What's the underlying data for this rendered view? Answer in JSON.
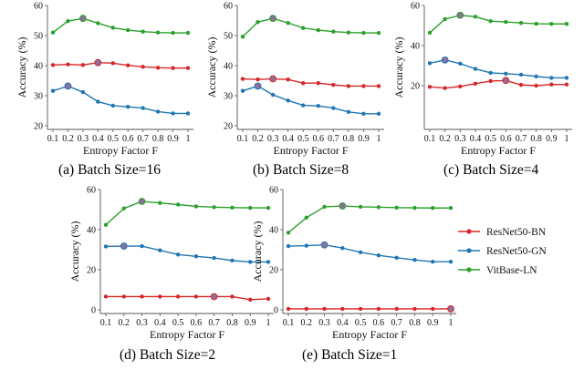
{
  "legend": {
    "position": "right",
    "entries": [
      {
        "name": "ResNet50-BN",
        "color": "#d62728"
      },
      {
        "name": "ResNet50-GN",
        "color": "#1f77b4"
      },
      {
        "name": "VitBase-LN",
        "color": "#2ca02c"
      }
    ]
  },
  "captions": [
    "(a) Batch Size=16",
    "(b) Batch Size=8",
    "(c) Batch Size=4",
    "(d) Batch Size=2",
    "(e) Batch Size=1"
  ],
  "chart_data": [
    {
      "type": "line",
      "caption": "(a) Batch Size=16",
      "xlabel": "Entropy Factor F",
      "ylabel": "Accuracy (%)",
      "x": [
        0.1,
        0.2,
        0.3,
        0.4,
        0.5,
        0.6,
        0.7,
        0.8,
        0.9,
        1
      ],
      "xtick_labels": [
        "0.1",
        "0.2",
        "0.3",
        "0.4",
        "0.5",
        "0.6",
        "0.7",
        "0.8",
        "0.9",
        "1"
      ],
      "ylim": [
        20,
        60
      ],
      "yticks": [
        20,
        30,
        40,
        50,
        60
      ],
      "series": [
        {
          "name": "ResNet50-BN",
          "color": "#d62728",
          "values": [
            40.2,
            40.4,
            40.2,
            41.0,
            40.8,
            40.1,
            39.6,
            39.3,
            39.2,
            39.2
          ],
          "best_index": 3
        },
        {
          "name": "ResNet50-GN",
          "color": "#1f77b4",
          "values": [
            31.6,
            33.2,
            31.2,
            28.0,
            26.7,
            26.3,
            25.9,
            24.7,
            24.1,
            24.1
          ],
          "best_index": 1
        },
        {
          "name": "VitBase-LN",
          "color": "#2ca02c",
          "values": [
            51.0,
            54.8,
            55.7,
            54.1,
            52.6,
            51.8,
            51.3,
            51.0,
            50.9,
            50.9
          ],
          "best_index": 2
        }
      ]
    },
    {
      "type": "line",
      "caption": "(b) Batch Size=8",
      "xlabel": "Entropy Factor F",
      "ylabel": "Accuracy (%)",
      "x": [
        0.1,
        0.2,
        0.3,
        0.4,
        0.5,
        0.6,
        0.7,
        0.8,
        0.9,
        1
      ],
      "xtick_labels": [
        "0.1",
        "0.2",
        "0.3",
        "0.4",
        "0.5",
        "0.6",
        "0.7",
        "0.8",
        "0.9",
        "1"
      ],
      "ylim": [
        20,
        60
      ],
      "yticks": [
        20,
        30,
        40,
        50,
        60
      ],
      "series": [
        {
          "name": "ResNet50-BN",
          "color": "#d62728",
          "values": [
            35.6,
            35.4,
            35.6,
            35.4,
            34.2,
            34.2,
            33.6,
            33.2,
            33.2,
            33.2
          ],
          "best_index": 2
        },
        {
          "name": "ResNet50-GN",
          "color": "#1f77b4",
          "values": [
            31.6,
            33.2,
            30.3,
            28.4,
            26.8,
            26.6,
            25.9,
            24.6,
            24.0,
            24.0
          ],
          "best_index": 1
        },
        {
          "name": "VitBase-LN",
          "color": "#2ca02c",
          "values": [
            49.6,
            54.5,
            55.7,
            54.2,
            52.5,
            51.8,
            51.3,
            51.0,
            50.9,
            50.9
          ],
          "best_index": 2
        }
      ]
    },
    {
      "type": "line",
      "caption": "(c) Batch Size=4",
      "xlabel": "Entropy Factor F",
      "ylabel": "Accuracy (%)",
      "x": [
        0.1,
        0.2,
        0.3,
        0.4,
        0.5,
        0.6,
        0.7,
        0.8,
        0.9,
        1
      ],
      "xtick_labels": [
        "0.1",
        "0.2",
        "0.3",
        "0.4",
        "0.5",
        "0.6",
        "0.7",
        "0.8",
        "0.9",
        "1"
      ],
      "ylim": [
        0,
        60
      ],
      "yticks": [
        20,
        40,
        60
      ],
      "series": [
        {
          "name": "ResNet50-BN",
          "color": "#d62728",
          "values": [
            19.4,
            18.8,
            19.6,
            21.0,
            22.3,
            22.6,
            20.4,
            20.0,
            20.6,
            20.6
          ],
          "best_index": 5
        },
        {
          "name": "ResNet50-GN",
          "color": "#1f77b4",
          "values": [
            31.2,
            32.8,
            31.0,
            28.4,
            26.4,
            26.0,
            25.5,
            24.6,
            23.9,
            23.9
          ],
          "best_index": 1
        },
        {
          "name": "VitBase-LN",
          "color": "#2ca02c",
          "values": [
            46.4,
            53.2,
            55.1,
            54.4,
            52.2,
            51.8,
            51.3,
            50.9,
            50.8,
            50.8
          ],
          "best_index": 2
        }
      ]
    },
    {
      "type": "line",
      "caption": "(d) Batch Size=2",
      "xlabel": "Entropy Factor F",
      "ylabel": "Accuracy (%)",
      "x": [
        0.1,
        0.2,
        0.3,
        0.4,
        0.5,
        0.6,
        0.7,
        0.8,
        0.9,
        1
      ],
      "xtick_labels": [
        "0.1",
        "0.2",
        "0.3",
        "0.4",
        "0.5",
        "0.6",
        "0.7",
        "0.8",
        "0.9",
        "1"
      ],
      "ylim": [
        0,
        60
      ],
      "yticks": [
        0,
        20,
        40,
        60
      ],
      "series": [
        {
          "name": "ResNet50-BN",
          "color": "#d62728",
          "values": [
            6.6,
            6.6,
            6.6,
            6.6,
            6.6,
            6.6,
            6.6,
            6.6,
            5.1,
            5.5
          ],
          "best_index": 6
        },
        {
          "name": "ResNet50-GN",
          "color": "#1f77b4",
          "values": [
            31.6,
            31.8,
            31.8,
            29.7,
            27.6,
            26.7,
            25.9,
            24.6,
            23.9,
            23.9
          ],
          "best_index": 1
        },
        {
          "name": "VitBase-LN",
          "color": "#2ca02c",
          "values": [
            42.4,
            50.6,
            54.1,
            53.3,
            52.5,
            51.6,
            51.2,
            51.0,
            50.9,
            50.9
          ],
          "best_index": 2
        }
      ]
    },
    {
      "type": "line",
      "caption": "(e) Batch Size=1",
      "xlabel": "Entropy Factor F",
      "ylabel": "Accuracy (%)",
      "x": [
        0.1,
        0.2,
        0.3,
        0.4,
        0.5,
        0.6,
        0.7,
        0.8,
        0.9,
        1
      ],
      "xtick_labels": [
        "0.1",
        "0.2",
        "0.3",
        "0.4",
        "0.5",
        "0.6",
        "0.7",
        "0.8",
        "0.9",
        "1"
      ],
      "ylim": [
        0,
        60
      ],
      "yticks": [
        0,
        20,
        40,
        60
      ],
      "series": [
        {
          "name": "ResNet50-BN",
          "color": "#d62728",
          "values": [
            0.5,
            0.5,
            0.5,
            0.5,
            0.5,
            0.5,
            0.5,
            0.5,
            0.5,
            0.5
          ],
          "best_index": 9
        },
        {
          "name": "ResNet50-GN",
          "color": "#1f77b4",
          "values": [
            31.8,
            32.0,
            32.4,
            30.8,
            28.7,
            27.2,
            26.0,
            24.9,
            24.0,
            24.0
          ],
          "best_index": 2
        },
        {
          "name": "VitBase-LN",
          "color": "#2ca02c",
          "values": [
            38.5,
            46.0,
            51.4,
            51.8,
            51.4,
            51.2,
            51.0,
            50.9,
            50.8,
            50.8
          ],
          "best_index": 3
        }
      ]
    }
  ]
}
